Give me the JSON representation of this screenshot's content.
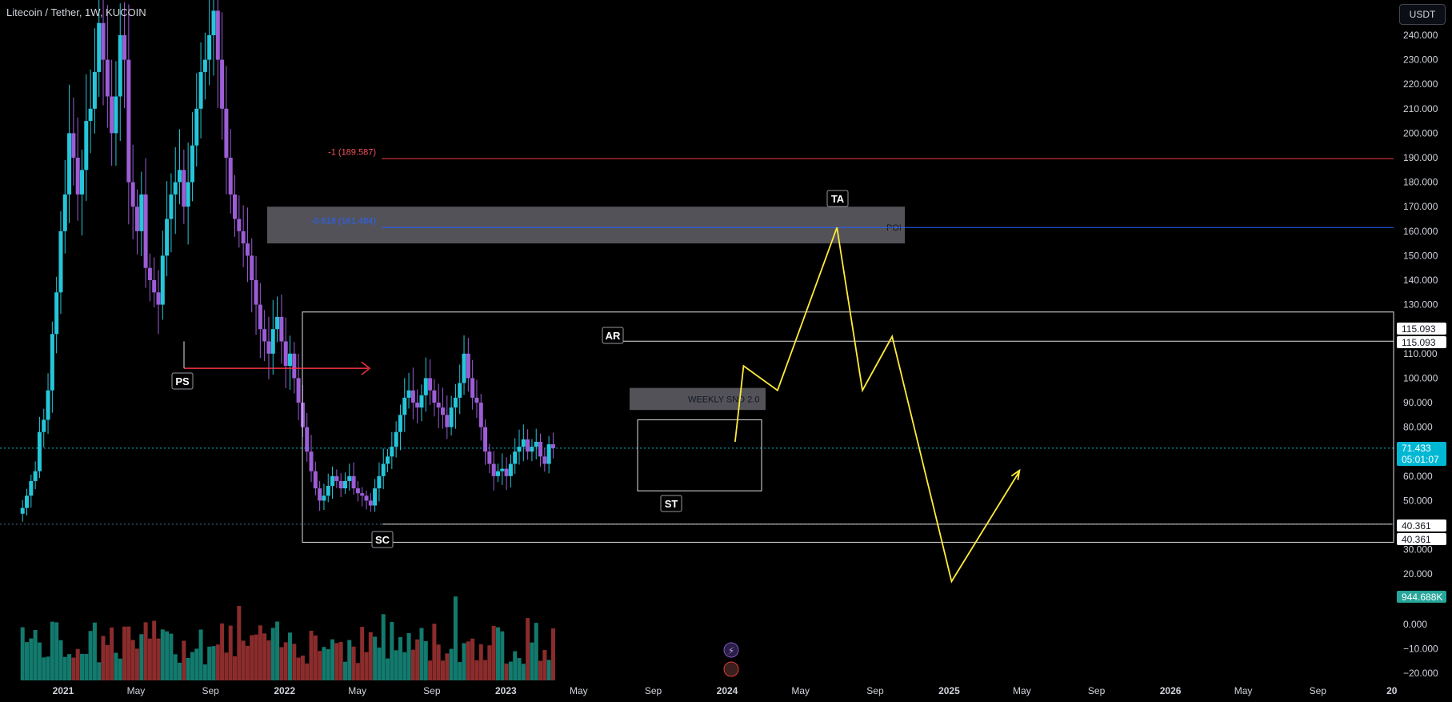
{
  "header": {
    "title": "Litecoin / Tether, 1W, KUCOIN",
    "currency_label": "USDT"
  },
  "colors": {
    "up": "#26c6da",
    "down": "#9c5dd6",
    "vol_up": "#137a6e",
    "vol_down": "#8b2c2c",
    "fib_minus1": "#f23645",
    "fib_level": "#2962ff",
    "projection": "#ffeb3b",
    "ps_arrow": "#f23645",
    "price_badge": "#00b8d4",
    "volume_badge": "#26a69a"
  },
  "chart_data": {
    "type": "candlestick",
    "symbol": "Litecoin / Tether",
    "interval": "1W",
    "exchange": "KUCOIN",
    "ylim": [
      -20,
      250
    ],
    "y_ticks": [
      "240.000",
      "230.000",
      "220.000",
      "210.000",
      "200.000",
      "190.000",
      "180.000",
      "170.000",
      "160.000",
      "150.000",
      "140.000",
      "130.000",
      "120.000",
      "110.000",
      "100.000",
      "90.000",
      "80.000",
      "70.000",
      "60.000",
      "50.000",
      "40.000",
      "30.000",
      "20.000",
      "0.000",
      "−10.000",
      "−20.000"
    ],
    "x_ticks": [
      "2021",
      "May",
      "Sep",
      "2022",
      "May",
      "Sep",
      "2023",
      "May",
      "Sep",
      "2024",
      "May",
      "Sep",
      "2025",
      "May",
      "Sep",
      "2026",
      "May",
      "Sep",
      "20"
    ],
    "last_price": "71.433",
    "countdown": "05:01:07",
    "volume_label": "944.688K",
    "price_markers": [
      "115.093",
      "115.093",
      "40.361",
      "40.361"
    ],
    "fib_levels": [
      {
        "label": "-1 (189.587)",
        "price": 189.587
      },
      {
        "label": "-0.618 (161.484)",
        "price": 161.484
      }
    ],
    "zones": [
      {
        "label": "POI",
        "low": 155,
        "high": 170
      },
      {
        "label": "WEEKLY SND 2.0",
        "low": 87,
        "high": 96
      }
    ],
    "wyckoff_labels": [
      "PS",
      "SC",
      "AR",
      "ST",
      "TA"
    ],
    "trading_range": {
      "high": 127,
      "low": 33
    },
    "range_lines": [
      115.093,
      40.361
    ],
    "projection_path": [
      [
        "2024-01-14",
        74
      ],
      [
        "2024-01-28",
        105
      ],
      [
        "2024-03-24",
        95
      ],
      [
        "2024-06-30",
        161.5
      ],
      [
        "2024-08-11",
        95
      ],
      [
        "2024-09-29",
        117
      ],
      [
        "2025-01-05",
        17
      ],
      [
        "2025-04-27",
        62
      ]
    ],
    "candles_anchor": {
      "start": "2020-10-26",
      "closes": [
        47,
        52,
        58,
        62,
        78,
        83,
        95,
        118,
        135,
        160,
        175,
        200,
        190,
        175,
        185,
        205,
        210,
        225,
        245,
        230,
        215,
        200,
        215,
        240,
        230,
        180,
        170,
        160,
        175,
        145,
        140,
        135,
        130,
        150,
        165,
        175,
        180,
        185,
        170,
        180,
        195,
        210,
        225,
        230,
        240,
        250,
        230,
        210,
        190,
        175,
        165,
        160,
        155,
        150,
        140,
        130,
        120,
        115,
        110,
        120,
        125,
        115,
        105,
        110,
        100,
        90,
        80,
        70,
        62,
        55,
        50,
        52,
        56,
        60,
        58,
        55,
        58,
        60,
        55,
        53,
        52,
        50,
        48,
        55,
        60,
        65,
        68,
        72,
        78,
        85,
        92,
        95,
        90,
        88,
        93,
        100,
        95,
        90,
        88,
        85,
        80,
        88,
        92,
        98,
        110,
        100,
        92,
        90,
        80,
        70,
        65,
        60,
        62,
        63,
        60,
        65,
        70,
        72,
        75,
        70,
        72,
        74,
        68,
        65,
        73,
        71.4
      ]
    }
  }
}
